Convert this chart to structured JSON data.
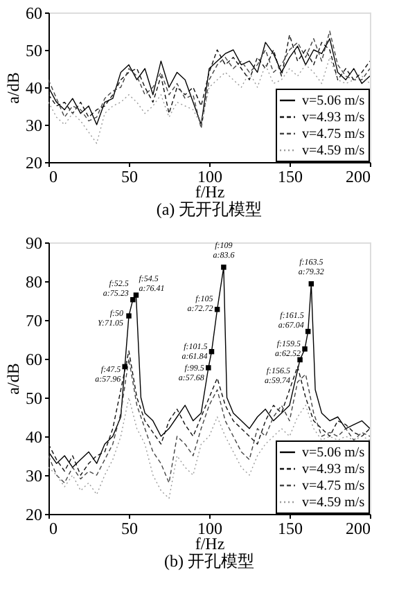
{
  "chart_data": [
    {
      "type": "line",
      "title": "(a) 无开孔模型",
      "xlabel": "f/Hz",
      "ylabel": "a/dB",
      "xlim": [
        0,
        200
      ],
      "xticks": [
        0,
        50,
        100,
        150,
        200
      ],
      "ylim": [
        20,
        60
      ],
      "yticks": [
        20,
        30,
        40,
        50,
        60
      ],
      "grid": false,
      "legend": "bottom right",
      "x": [
        0,
        5,
        10,
        15,
        20,
        25,
        30,
        35,
        40,
        45,
        50,
        55,
        60,
        65,
        70,
        75,
        80,
        85,
        90,
        95,
        100,
        105,
        110,
        115,
        120,
        125,
        130,
        135,
        140,
        145,
        150,
        155,
        160,
        165,
        170,
        175,
        180,
        185,
        190,
        195,
        200
      ],
      "series": [
        {
          "name": "v=5.06 m/s",
          "color": "#000000",
          "line_style": "solid",
          "values": [
            40,
            36,
            34,
            37,
            33,
            35,
            30,
            36,
            37,
            44,
            46,
            42,
            45,
            38,
            47,
            40,
            44,
            42,
            36,
            30,
            45,
            47,
            49,
            50,
            46,
            47,
            44,
            52,
            49,
            44,
            48,
            51,
            46,
            50,
            49,
            53,
            44,
            42,
            45,
            41,
            43
          ]
        },
        {
          "name": "v=4.93 m/s",
          "color": "#111111",
          "line_style": "dashed",
          "values": [
            38,
            35,
            36,
            33,
            36,
            32,
            34,
            35,
            38,
            42,
            44,
            45,
            40,
            36,
            43,
            33,
            40,
            38,
            40,
            35,
            44,
            50,
            46,
            48,
            45,
            42,
            48,
            45,
            50,
            43,
            54,
            47,
            50,
            46,
            52,
            50,
            42,
            45,
            42,
            44,
            47
          ]
        },
        {
          "name": "v=4.75 m/s",
          "color": "#444444",
          "line_style": "dashed",
          "values": [
            42,
            37,
            32,
            35,
            34,
            31,
            32,
            37,
            39,
            40,
            45,
            43,
            38,
            40,
            44,
            38,
            41,
            37,
            38,
            29,
            42,
            46,
            48,
            45,
            47,
            44,
            46,
            50,
            44,
            46,
            50,
            52,
            48,
            53,
            47,
            55,
            46,
            43,
            42,
            42,
            45
          ]
        },
        {
          "name": "v=4.59 m/s",
          "color": "#999999",
          "line_style": "dotted",
          "values": [
            36,
            32,
            30,
            33,
            31,
            28,
            25,
            33,
            35,
            36,
            38,
            36,
            33,
            35,
            38,
            32,
            36,
            35,
            34,
            30,
            40,
            42,
            44,
            42,
            40,
            44,
            40,
            46,
            41,
            42,
            45,
            43,
            46,
            44,
            41,
            48,
            42,
            41,
            42,
            43,
            41
          ]
        }
      ]
    },
    {
      "type": "line",
      "title": "(b) 开孔模型",
      "xlabel": "f/Hz",
      "ylabel": "a/dB",
      "xlim": [
        0,
        200
      ],
      "xticks": [
        0,
        50,
        100,
        150,
        200
      ],
      "ylim": [
        20,
        90
      ],
      "yticks": [
        20,
        30,
        40,
        50,
        60,
        70,
        80,
        90
      ],
      "grid": false,
      "legend": "bottom right",
      "x": [
        0,
        5,
        10,
        15,
        20,
        25,
        30,
        35,
        40,
        45,
        50,
        55,
        60,
        65,
        70,
        75,
        80,
        85,
        90,
        95,
        100,
        105,
        110,
        115,
        120,
        125,
        130,
        135,
        140,
        145,
        150,
        155,
        160,
        165,
        170,
        175,
        180,
        185,
        190,
        195,
        200
      ],
      "series": [
        {
          "name": "v=5.06 m/s",
          "color": "#000000",
          "line_style": "solid",
          "x": [
            0,
            5,
            10,
            15,
            20,
            25,
            30,
            35,
            40,
            45,
            47.5,
            50,
            52.5,
            54.5,
            57.5,
            60,
            65,
            70,
            75,
            80,
            85,
            90,
            95,
            99.5,
            101.5,
            105,
            109,
            111,
            115,
            120,
            125,
            130,
            135,
            140,
            145,
            150,
            156.5,
            159.5,
            161.5,
            163.5,
            166,
            170,
            175,
            180,
            185,
            190,
            195,
            200
          ],
          "values": [
            36,
            33,
            35,
            32,
            34,
            36,
            33,
            38,
            40,
            45,
            57.96,
            71.05,
            75.23,
            76.41,
            50,
            46,
            44,
            40,
            42,
            45,
            48,
            44,
            46,
            57.68,
            61.84,
            72.72,
            83.6,
            50,
            46,
            44,
            42,
            45,
            47,
            44,
            46,
            48,
            59.74,
            62.52,
            67.04,
            79.32,
            52,
            46,
            44,
            45,
            42,
            43,
            44,
            42
          ]
        },
        {
          "name": "v=4.93 m/s",
          "color": "#111111",
          "line_style": "dashed",
          "values": [
            38,
            34,
            31,
            35,
            30,
            33,
            35,
            36,
            42,
            52,
            62,
            50,
            44,
            41,
            38,
            44,
            47,
            43,
            40,
            45,
            50,
            55,
            48,
            44,
            42,
            40,
            38,
            44,
            48,
            46,
            52,
            58,
            50,
            44,
            42,
            40,
            44,
            43,
            41,
            40,
            42
          ]
        },
        {
          "name": "v=4.75 m/s",
          "color": "#444444",
          "line_style": "dashed",
          "values": [
            35,
            30,
            28,
            32,
            29,
            31,
            30,
            34,
            38,
            46,
            60,
            48,
            42,
            36,
            33,
            28,
            40,
            38,
            35,
            42,
            48,
            52,
            44,
            40,
            36,
            34,
            42,
            40,
            45,
            48,
            44,
            54,
            56,
            46,
            40,
            41,
            40,
            42,
            39,
            41,
            40
          ]
        },
        {
          "name": "v=4.59 m/s",
          "color": "#999999",
          "line_style": "dotted",
          "values": [
            32,
            30,
            27,
            30,
            26,
            28,
            25,
            30,
            34,
            40,
            50,
            42,
            38,
            30,
            26,
            24,
            35,
            32,
            30,
            38,
            40,
            45,
            40,
            36,
            32,
            30,
            35,
            38,
            40,
            42,
            40,
            45,
            48,
            42,
            39,
            40,
            39,
            40,
            39,
            40,
            39
          ]
        }
      ],
      "annotations": [
        {
          "text": "f:47.5\na:57.96",
          "x": 47.5,
          "y": 57.96
        },
        {
          "text": "f:50\nY:71.05",
          "x": 50,
          "y": 71.05
        },
        {
          "text": "f:52.5\na:75.23",
          "x": 52.5,
          "y": 75.23
        },
        {
          "text": "f:54.5\na:76.41",
          "x": 54.5,
          "y": 76.41
        },
        {
          "text": "f:99.5\na:57.68",
          "x": 99.5,
          "y": 57.68
        },
        {
          "text": "f:101.5\na:61.84",
          "x": 101.5,
          "y": 61.84
        },
        {
          "text": "f:105\na:72.72",
          "x": 105,
          "y": 72.72
        },
        {
          "text": "f:109\na:83.6",
          "x": 109,
          "y": 83.6
        },
        {
          "text": "f:156.5\na:59.74",
          "x": 156.5,
          "y": 59.74
        },
        {
          "text": "f:159.5\na:62.52",
          "x": 159.5,
          "y": 62.52
        },
        {
          "text": "f:161.5\na:67.04",
          "x": 161.5,
          "y": 67.04
        },
        {
          "text": "f:163.5\na:79.32",
          "x": 163.5,
          "y": 79.32
        }
      ]
    }
  ]
}
